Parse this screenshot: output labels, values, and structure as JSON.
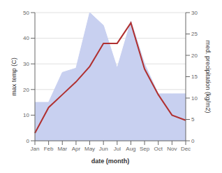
{
  "chart_data": {
    "type": "line",
    "categories": [
      "Jan",
      "Feb",
      "Mar",
      "Apr",
      "May",
      "Jun",
      "Jul",
      "Aug",
      "Sep",
      "Oct",
      "Nov",
      "Dec"
    ],
    "series": [
      {
        "type": "area",
        "color": "#c8d0f0",
        "axis": "y2",
        "values": [
          9,
          9,
          16,
          17,
          30,
          27,
          17,
          28,
          18,
          11,
          11,
          11
        ]
      },
      {
        "type": "line",
        "color": "#b03030",
        "values": [
          3,
          13,
          18,
          23,
          29,
          38,
          38,
          46,
          28,
          18,
          10,
          8
        ]
      }
    ],
    "xlabel": "date (month)",
    "ylabel": "max temp (C)",
    "y2label": "med. precipitation (kg/m2)",
    "ylim": [
      0,
      50
    ],
    "yticks": [
      0,
      10,
      20,
      30,
      40,
      50
    ],
    "y2lim": [
      0,
      30
    ],
    "y2ticks": [
      0,
      5,
      10,
      15,
      20,
      25,
      30
    ],
    "grid": true
  }
}
